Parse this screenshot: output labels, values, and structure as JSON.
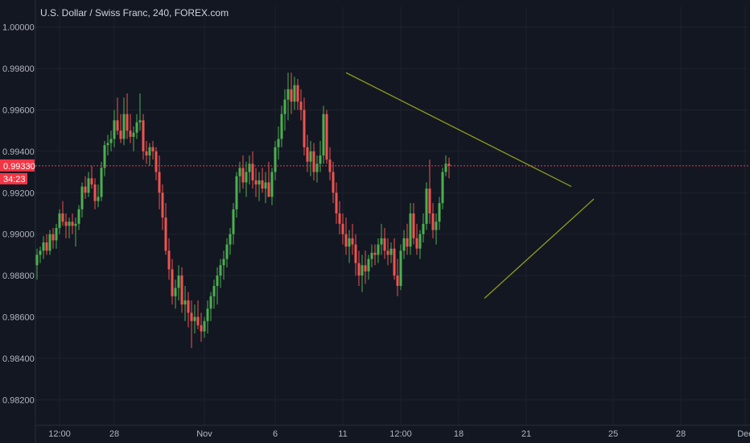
{
  "header": {
    "title": "U.S. Dollar / Swiss Franc, 240, FOREX.com"
  },
  "current_price": {
    "value": 0.9933,
    "label": "0.99330",
    "countdown": "34:23",
    "color": "#f23645"
  },
  "colors": {
    "background": "#131722",
    "grid": "#1e222d",
    "up": "#4caf50",
    "down": "#ef5350",
    "trendline": "#8a9a1c",
    "axis_text": "#b2b5be"
  },
  "chart_data": {
    "type": "candlestick",
    "title": "U.S. Dollar / Swiss Franc, 240, FOREX.com",
    "ylim": [
      0.981,
      1.001
    ],
    "y_ticks": [
      "1.00000",
      "0.99800",
      "0.99600",
      "0.99400",
      "0.99200",
      "0.99000",
      "0.98800",
      "0.98600",
      "0.98400",
      "0.98200"
    ],
    "x_ticks": [
      {
        "label": "12:00",
        "index": 7
      },
      {
        "label": "28",
        "index": 24
      },
      {
        "label": "Nov",
        "index": 52
      },
      {
        "label": "6",
        "index": 74
      },
      {
        "label": "11",
        "index": 95
      },
      {
        "label": "12:00",
        "index": 113
      },
      {
        "label": "18",
        "index": 131
      },
      {
        "label": "21",
        "index": 152
      },
      {
        "label": "25",
        "index": 179
      },
      {
        "label": "28",
        "index": 200
      },
      {
        "label": "Dec",
        "index": 220
      }
    ],
    "grid": true,
    "candles": [
      [
        0.9885,
        0.9893,
        0.9878,
        0.989
      ],
      [
        0.989,
        0.9894,
        0.9886,
        0.9892
      ],
      [
        0.9892,
        0.9899,
        0.9888,
        0.9896
      ],
      [
        0.9896,
        0.99,
        0.989,
        0.9892
      ],
      [
        0.9892,
        0.9902,
        0.989,
        0.99
      ],
      [
        0.99,
        0.9903,
        0.9893,
        0.9897
      ],
      [
        0.9897,
        0.9905,
        0.9893,
        0.9903
      ],
      [
        0.9903,
        0.9912,
        0.99,
        0.991
      ],
      [
        0.991,
        0.9916,
        0.9904,
        0.9906
      ],
      [
        0.9906,
        0.991,
        0.9898,
        0.9904
      ],
      [
        0.9904,
        0.9908,
        0.9898,
        0.9906
      ],
      [
        0.9906,
        0.991,
        0.99,
        0.9904
      ],
      [
        0.9904,
        0.9908,
        0.9894,
        0.9905
      ],
      [
        0.9905,
        0.9914,
        0.9902,
        0.9912
      ],
      [
        0.9912,
        0.9925,
        0.9908,
        0.9923
      ],
      [
        0.9923,
        0.9928,
        0.9917,
        0.992
      ],
      [
        0.992,
        0.993,
        0.9918,
        0.9927
      ],
      [
        0.9927,
        0.9933,
        0.9922,
        0.9924
      ],
      [
        0.9924,
        0.9927,
        0.9912,
        0.9916
      ],
      [
        0.9916,
        0.9924,
        0.9913,
        0.9918
      ],
      [
        0.9918,
        0.9935,
        0.9916,
        0.9932
      ],
      [
        0.9932,
        0.9945,
        0.9928,
        0.9943
      ],
      [
        0.9943,
        0.9948,
        0.9938,
        0.9944
      ],
      [
        0.9944,
        0.995,
        0.994,
        0.9946
      ],
      [
        0.9946,
        0.996,
        0.9942,
        0.9955
      ],
      [
        0.9955,
        0.9966,
        0.9948,
        0.995
      ],
      [
        0.995,
        0.9958,
        0.9944,
        0.9946
      ],
      [
        0.9946,
        0.9966,
        0.9943,
        0.9958
      ],
      [
        0.9958,
        0.9968,
        0.9946,
        0.995
      ],
      [
        0.995,
        0.9958,
        0.9944,
        0.9947
      ],
      [
        0.9947,
        0.9952,
        0.994,
        0.9949
      ],
      [
        0.9949,
        0.9958,
        0.9946,
        0.9954
      ],
      [
        0.9954,
        0.9968,
        0.995,
        0.9955
      ],
      [
        0.9955,
        0.9958,
        0.9936,
        0.994
      ],
      [
        0.994,
        0.9945,
        0.9934,
        0.9938
      ],
      [
        0.9938,
        0.9944,
        0.9933,
        0.9942
      ],
      [
        0.9942,
        0.9945,
        0.9936,
        0.994
      ],
      [
        0.994,
        0.9942,
        0.9926,
        0.993
      ],
      [
        0.993,
        0.9938,
        0.9912,
        0.992
      ],
      [
        0.992,
        0.9924,
        0.9902,
        0.9908
      ],
      [
        0.9908,
        0.9915,
        0.989,
        0.9892
      ],
      [
        0.9892,
        0.9898,
        0.9878,
        0.9883
      ],
      [
        0.9883,
        0.9888,
        0.9866,
        0.987
      ],
      [
        0.987,
        0.9878,
        0.9864,
        0.9874
      ],
      [
        0.9874,
        0.9885,
        0.9868,
        0.988
      ],
      [
        0.988,
        0.9884,
        0.9862,
        0.9866
      ],
      [
        0.9866,
        0.9875,
        0.9858,
        0.9868
      ],
      [
        0.9868,
        0.9872,
        0.9855,
        0.9862
      ],
      [
        0.9862,
        0.9868,
        0.9845,
        0.9858
      ],
      [
        0.9858,
        0.9866,
        0.9852,
        0.986
      ],
      [
        0.986,
        0.9868,
        0.9854,
        0.9856
      ],
      [
        0.9856,
        0.9862,
        0.9848,
        0.9853
      ],
      [
        0.9853,
        0.986,
        0.985,
        0.9858
      ],
      [
        0.9858,
        0.9868,
        0.9852,
        0.9864
      ],
      [
        0.9864,
        0.9872,
        0.9858,
        0.987
      ],
      [
        0.987,
        0.9878,
        0.9864,
        0.9875
      ],
      [
        0.9875,
        0.9884,
        0.9866,
        0.988
      ],
      [
        0.988,
        0.9888,
        0.9874,
        0.9885
      ],
      [
        0.9885,
        0.9892,
        0.9878,
        0.9888
      ],
      [
        0.9888,
        0.9898,
        0.9884,
        0.9895
      ],
      [
        0.9895,
        0.9903,
        0.989,
        0.99
      ],
      [
        0.99,
        0.9915,
        0.9895,
        0.9912
      ],
      [
        0.9912,
        0.993,
        0.9908,
        0.9928
      ],
      [
        0.9928,
        0.9935,
        0.992,
        0.9932
      ],
      [
        0.9932,
        0.9938,
        0.9922,
        0.9925
      ],
      [
        0.9925,
        0.9935,
        0.9918,
        0.993
      ],
      [
        0.993,
        0.9938,
        0.9924,
        0.9934
      ],
      [
        0.9934,
        0.994,
        0.9922,
        0.9926
      ],
      [
        0.9926,
        0.9932,
        0.9918,
        0.9924
      ],
      [
        0.9924,
        0.993,
        0.9916,
        0.9926
      ],
      [
        0.9926,
        0.9932,
        0.992,
        0.9922
      ],
      [
        0.9922,
        0.993,
        0.9915,
        0.9925
      ],
      [
        0.9925,
        0.9935,
        0.9918,
        0.9918
      ],
      [
        0.9918,
        0.9932,
        0.9914,
        0.993
      ],
      [
        0.993,
        0.9945,
        0.9926,
        0.9942
      ],
      [
        0.9942,
        0.9952,
        0.9936,
        0.9946
      ],
      [
        0.9946,
        0.9962,
        0.9942,
        0.9958
      ],
      [
        0.9958,
        0.997,
        0.995,
        0.9965
      ],
      [
        0.9965,
        0.9978,
        0.9955,
        0.997
      ],
      [
        0.997,
        0.9978,
        0.9958,
        0.9964
      ],
      [
        0.9964,
        0.9976,
        0.996,
        0.9972
      ],
      [
        0.9972,
        0.9975,
        0.996,
        0.9964
      ],
      [
        0.9964,
        0.997,
        0.9955,
        0.996
      ],
      [
        0.996,
        0.9966,
        0.9938,
        0.9942
      ],
      [
        0.9942,
        0.9948,
        0.993,
        0.9935
      ],
      [
        0.9935,
        0.9945,
        0.9928,
        0.994
      ],
      [
        0.994,
        0.9944,
        0.9926,
        0.993
      ],
      [
        0.993,
        0.9938,
        0.9925,
        0.9934
      ],
      [
        0.9934,
        0.9945,
        0.993,
        0.9938
      ],
      [
        0.9938,
        0.9962,
        0.9934,
        0.9958
      ],
      [
        0.9958,
        0.996,
        0.9934,
        0.9936
      ],
      [
        0.9936,
        0.9942,
        0.9926,
        0.993
      ],
      [
        0.993,
        0.9935,
        0.9915,
        0.992
      ],
      [
        0.992,
        0.9925,
        0.9905,
        0.991
      ],
      [
        0.991,
        0.9916,
        0.99,
        0.9905
      ],
      [
        0.9905,
        0.991,
        0.9895,
        0.99
      ],
      [
        0.99,
        0.9908,
        0.989,
        0.9894
      ],
      [
        0.9894,
        0.9902,
        0.9886,
        0.9898
      ],
      [
        0.9898,
        0.9905,
        0.989,
        0.9895
      ],
      [
        0.9895,
        0.99,
        0.988,
        0.9886
      ],
      [
        0.9886,
        0.9892,
        0.9875,
        0.988
      ],
      [
        0.988,
        0.989,
        0.9872,
        0.9885
      ],
      [
        0.9885,
        0.9892,
        0.9876,
        0.9882
      ],
      [
        0.9882,
        0.989,
        0.9878,
        0.9888
      ],
      [
        0.9888,
        0.9895,
        0.9884,
        0.9891
      ],
      [
        0.9891,
        0.9895,
        0.9885,
        0.989
      ],
      [
        0.989,
        0.9898,
        0.9886,
        0.9895
      ],
      [
        0.9895,
        0.9905,
        0.989,
        0.9898
      ],
      [
        0.9898,
        0.9903,
        0.9888,
        0.9892
      ],
      [
        0.9892,
        0.9898,
        0.9885,
        0.989
      ],
      [
        0.989,
        0.9896,
        0.9886,
        0.9893
      ],
      [
        0.9893,
        0.9898,
        0.9878,
        0.988
      ],
      [
        0.988,
        0.9888,
        0.987,
        0.9875
      ],
      [
        0.9875,
        0.9895,
        0.9873,
        0.9892
      ],
      [
        0.9892,
        0.9902,
        0.9888,
        0.9898
      ],
      [
        0.9898,
        0.9905,
        0.989,
        0.9894
      ],
      [
        0.9894,
        0.9915,
        0.989,
        0.991
      ],
      [
        0.991,
        0.9915,
        0.9895,
        0.9898
      ],
      [
        0.9898,
        0.9905,
        0.989,
        0.9893
      ],
      [
        0.9893,
        0.9902,
        0.9888,
        0.99
      ],
      [
        0.99,
        0.991,
        0.9896,
        0.9905
      ],
      [
        0.9905,
        0.9925,
        0.9902,
        0.9922
      ],
      [
        0.9922,
        0.9936,
        0.9905,
        0.991
      ],
      [
        0.991,
        0.9915,
        0.9898,
        0.9902
      ],
      [
        0.9902,
        0.991,
        0.9895,
        0.9906
      ],
      [
        0.9906,
        0.9918,
        0.9902,
        0.9915
      ],
      [
        0.9915,
        0.9932,
        0.9912,
        0.993
      ],
      [
        0.993,
        0.9938,
        0.9928,
        0.9934
      ],
      [
        0.9934,
        0.9937,
        0.9927,
        0.9933
      ]
    ],
    "trendlines": [
      {
        "name": "upper",
        "from": [
          96,
          0.9978
        ],
        "to": [
          166,
          0.9923
        ]
      },
      {
        "name": "lower",
        "from": [
          139,
          0.9869
        ],
        "to": [
          173,
          0.9917
        ]
      }
    ]
  }
}
